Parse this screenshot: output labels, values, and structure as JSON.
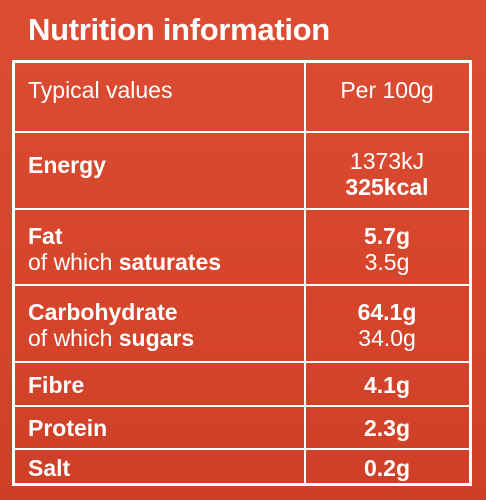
{
  "title": "Nutrition information",
  "header": {
    "label": "Typical values",
    "column": "Per 100g"
  },
  "rows": [
    {
      "name": "Energy",
      "values": [
        "1373kJ",
        "325kcal"
      ]
    },
    {
      "name": "Fat",
      "sub_prefix": "of which",
      "sub_name": "saturates",
      "value": "5.7g",
      "sub_value": "3.5g"
    },
    {
      "name": "Carbohydrate",
      "sub_prefix": "of which",
      "sub_name": "sugars",
      "value": "64.1g",
      "sub_value": "34.0g"
    },
    {
      "name": "Fibre",
      "value": "4.1g"
    },
    {
      "name": "Protein",
      "value": "2.3g"
    },
    {
      "name": "Salt",
      "value": "0.2g"
    }
  ],
  "colors": {
    "background": "#d8482f",
    "text": "#ffffff",
    "rule": "#ffffff"
  }
}
